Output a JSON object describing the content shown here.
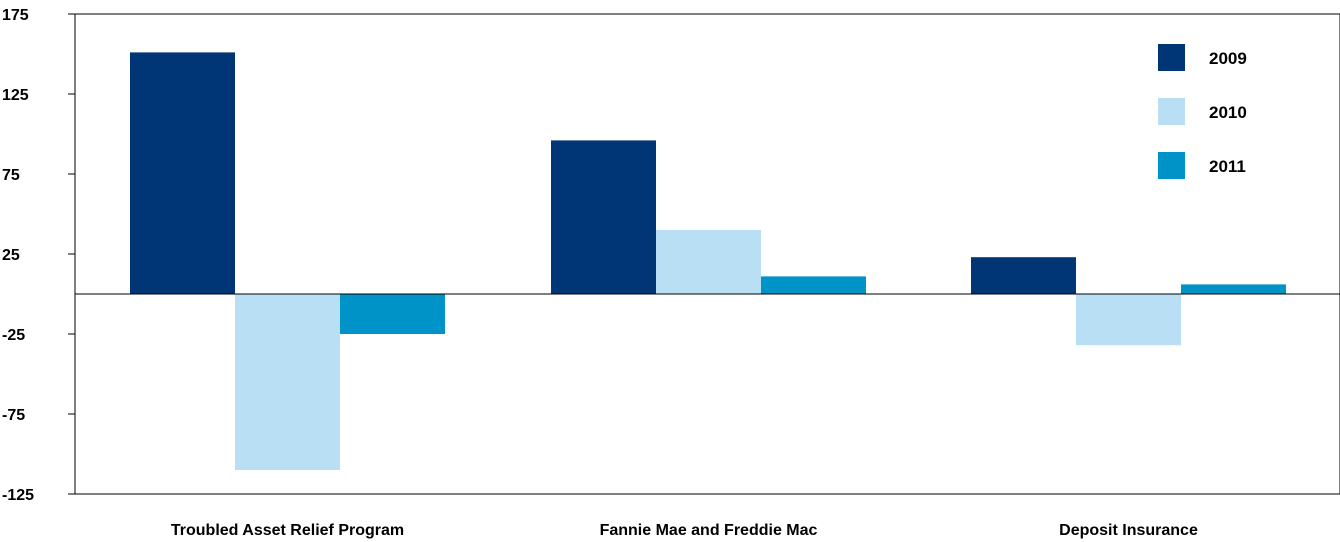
{
  "chart_data": {
    "type": "bar",
    "categories": [
      "Troubled Asset Relief Program",
      "Fannie Mae and Freddie Mac",
      "Deposit Insurance"
    ],
    "series": [
      {
        "name": "2009",
        "color": "#003676",
        "values": [
          151,
          96,
          23
        ]
      },
      {
        "name": "2010",
        "color": "#b9dff5",
        "values": [
          -110,
          40,
          -32
        ]
      },
      {
        "name": "2011",
        "color": "#0093c8",
        "values": [
          -25,
          11,
          6
        ]
      }
    ],
    "y_ticks": [
      "175",
      "125",
      "75",
      "25",
      "-25",
      "-75",
      "-125"
    ],
    "ylim": [
      -125,
      175
    ],
    "title": "",
    "xlabel": "",
    "ylabel": "",
    "grid": false,
    "legend_position": "top-right"
  }
}
